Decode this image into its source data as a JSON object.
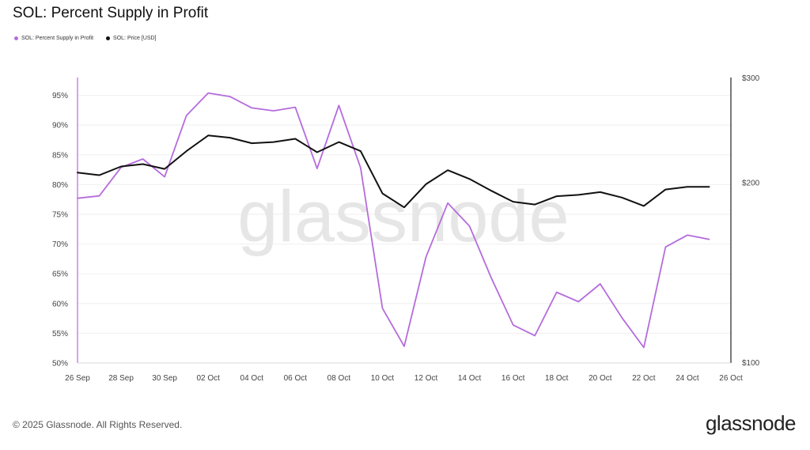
{
  "chart_data": {
    "type": "line",
    "title": "SOL: Percent Supply in Profit",
    "x": [
      "26 Sep",
      "27 Sep",
      "28 Sep",
      "29 Sep",
      "30 Sep",
      "01 Oct",
      "02 Oct",
      "03 Oct",
      "04 Oct",
      "05 Oct",
      "06 Oct",
      "07 Oct",
      "08 Oct",
      "09 Oct",
      "10 Oct",
      "11 Oct",
      "12 Oct",
      "13 Oct",
      "14 Oct",
      "15 Oct",
      "16 Oct",
      "17 Oct",
      "18 Oct",
      "19 Oct",
      "20 Oct",
      "21 Oct",
      "22 Oct",
      "23 Oct",
      "24 Oct",
      "25 Oct"
    ],
    "x_tick_labels": [
      "26 Sep",
      "28 Sep",
      "30 Sep",
      "02 Oct",
      "04 Oct",
      "06 Oct",
      "08 Oct",
      "10 Oct",
      "12 Oct",
      "14 Oct",
      "16 Oct",
      "18 Oct",
      "20 Oct",
      "22 Oct",
      "24 Oct",
      "26 Oct"
    ],
    "y_left": {
      "ticks": [
        "50%",
        "55%",
        "60%",
        "65%",
        "70%",
        "75%",
        "80%",
        "85%",
        "90%",
        "95%"
      ],
      "range": [
        50,
        98
      ]
    },
    "y_right": {
      "ticks": [
        "$100",
        "$200",
        "$300"
      ],
      "range": [
        100,
        300
      ],
      "scale": "log"
    },
    "series": [
      {
        "name": "SOL: Percent Supply in Profit",
        "axis": "left",
        "color": "#b56cdc",
        "values": [
          77.7,
          78.1,
          82.9,
          84.3,
          81.3,
          91.6,
          95.4,
          94.8,
          92.9,
          92.4,
          93.0,
          82.7,
          93.3,
          82.8,
          59.2,
          52.8,
          67.8,
          76.9,
          73.0,
          64.3,
          56.4,
          54.6,
          61.9,
          60.3,
          63.3,
          57.6,
          52.6,
          69.5,
          71.5,
          70.8
        ]
      },
      {
        "name": "SOL: Price [USD]",
        "axis": "right",
        "color": "#111111",
        "values": [
          208,
          206,
          213,
          215,
          211,
          226,
          240,
          238,
          233,
          234,
          237,
          225,
          234,
          226,
          192,
          182,
          199,
          210,
          203,
          194,
          186,
          184,
          190,
          191,
          193,
          189,
          183,
          195,
          197,
          197
        ]
      }
    ],
    "watermark": "glassnode"
  },
  "legend": [
    {
      "label": "SOL: Percent Supply in Profit",
      "color": "#b56cdc"
    },
    {
      "label": "SOL: Price [USD]",
      "color": "#111111"
    }
  ],
  "footer": {
    "copyright": "© 2025 Glassnode. All Rights Reserved.",
    "logo": "glassnode"
  }
}
